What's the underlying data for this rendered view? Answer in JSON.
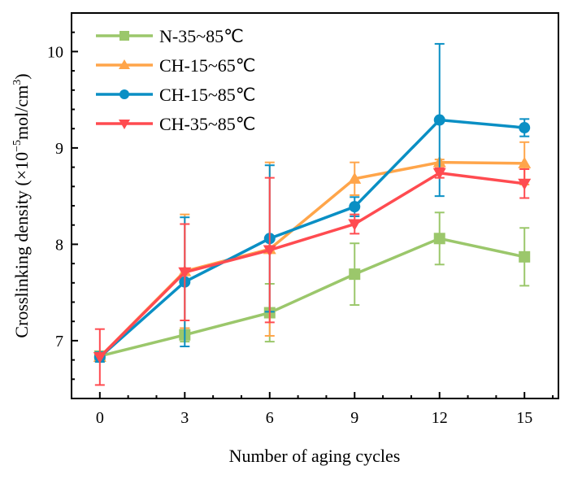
{
  "chart_data": {
    "type": "line",
    "xlabel": "Number of aging cycles",
    "ylabel": "Crosslinking density (×10",
    "ylabel_sup": "−5",
    "ylabel_unit": "mol/cm",
    "ylabel_unit_sup": "3",
    "ylabel_end": ")",
    "x": [
      0,
      3,
      6,
      9,
      12,
      15
    ],
    "xlim": [
      -1,
      16.2
    ],
    "ylim": [
      6.4,
      10.4
    ],
    "xticks": [
      0,
      3,
      6,
      9,
      12,
      15
    ],
    "yticks": [
      7,
      8,
      9,
      10
    ],
    "grid": false,
    "legend_position": "top-left",
    "series": [
      {
        "name": "N-35~85℃",
        "color": "#9BC76B",
        "marker": "square",
        "values": [
          6.84,
          7.06,
          7.29,
          7.69,
          8.06,
          7.87
        ],
        "errors": [
          0.05,
          0.07,
          0.3,
          0.32,
          0.27,
          0.3
        ]
      },
      {
        "name": "CH-15~65℃",
        "color": "#FFA54A",
        "marker": "triangle-up",
        "values": [
          6.83,
          7.72,
          7.95,
          8.68,
          8.85,
          8.84
        ],
        "errors": [
          0.05,
          0.59,
          0.9,
          0.17,
          0.03,
          0.22
        ]
      },
      {
        "name": "CH-15~85℃",
        "color": "#0A8FC4",
        "marker": "circle",
        "values": [
          6.83,
          7.61,
          8.06,
          8.39,
          9.29,
          9.21
        ],
        "errors": [
          0.05,
          0.67,
          0.76,
          0.1,
          0.79,
          0.09
        ]
      },
      {
        "name": "CH-35~85℃",
        "color": "#FF4B50",
        "marker": "triangle-down",
        "values": [
          6.83,
          7.71,
          7.94,
          8.21,
          8.74,
          8.63
        ],
        "errors": [
          0.29,
          0.5,
          0.75,
          0.1,
          0.05,
          0.15
        ]
      }
    ]
  }
}
